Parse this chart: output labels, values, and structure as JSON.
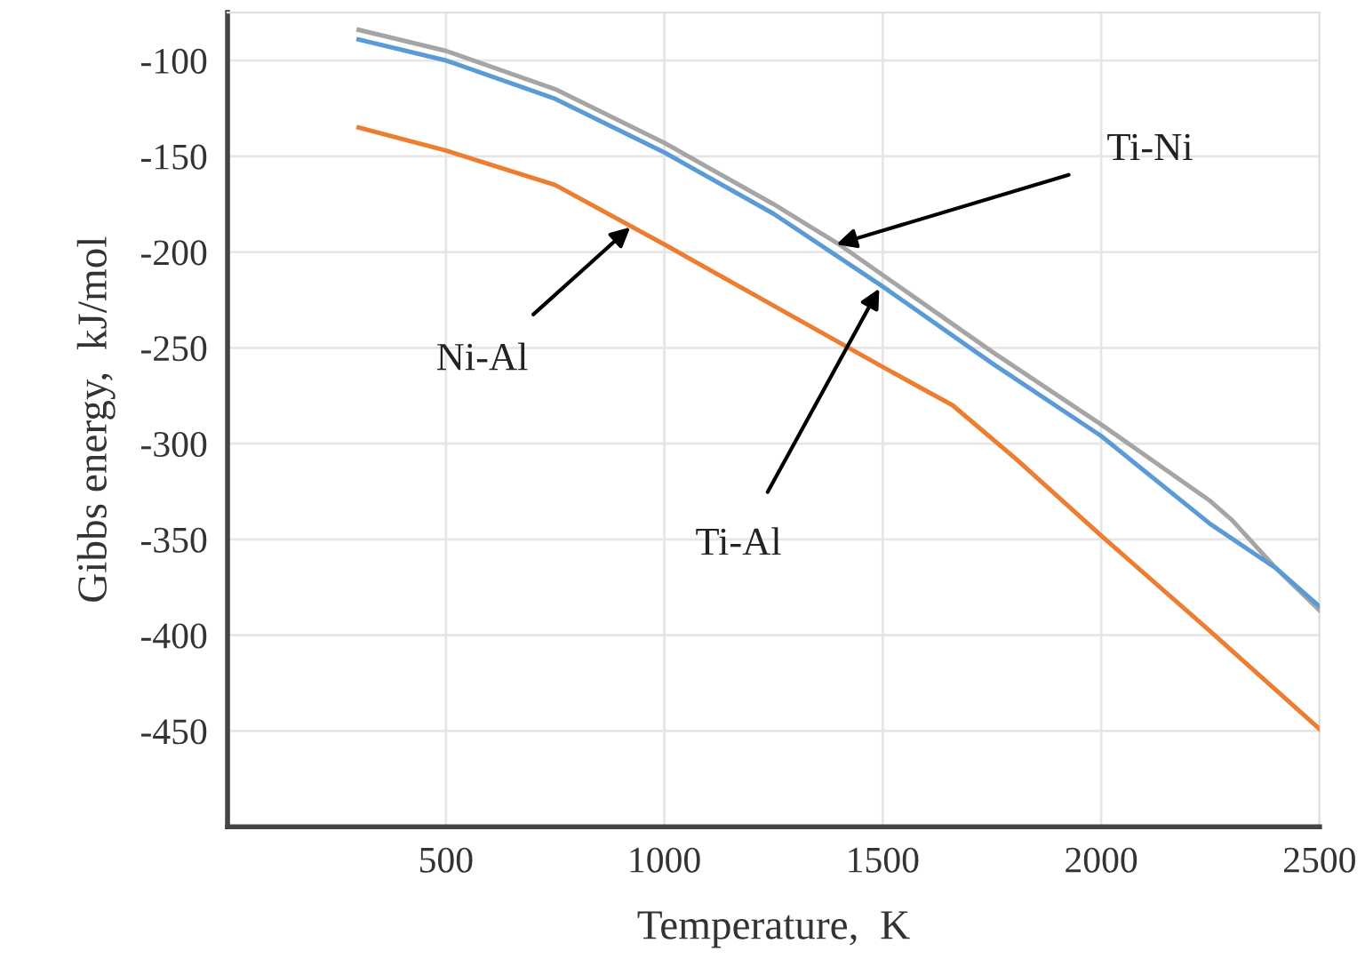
{
  "chart_data": {
    "type": "line",
    "xlabel": "Temperature,  K",
    "ylabel": "Gibbs energy,  kJ/mol",
    "xlim": [
      0,
      2500
    ],
    "xticks": [
      500,
      1000,
      1500,
      2000,
      2500
    ],
    "ylim": [
      -500,
      -75
    ],
    "yticks": [
      -100,
      -150,
      -200,
      -250,
      -300,
      -350,
      -400,
      -450
    ],
    "grid": true,
    "marker": "none",
    "line_style": "solid",
    "series": [
      {
        "color": "#a5a5a5",
        "x": [
          300,
          500,
          750,
          1000,
          1250,
          1400,
          1500,
          1750,
          2000,
          2250,
          2300,
          2400,
          2500
        ],
        "values": [
          -84,
          -95,
          -115,
          -143,
          -175,
          -196,
          -212,
          -252,
          -290,
          -330,
          -340,
          -365,
          -387
        ]
      },
      {
        "color": "#5b9bd5",
        "x": [
          300,
          500,
          750,
          1000,
          1250,
          1500,
          1750,
          2000,
          2250,
          2400,
          2500
        ],
        "values": [
          -89,
          -100,
          -120,
          -148,
          -180,
          -218,
          -258,
          -296,
          -342,
          -365,
          -385
        ]
      },
      {
        "color": "#ed7d31",
        "x": [
          300,
          500,
          750,
          1000,
          1250,
          1500,
          1660,
          1800,
          2000,
          2250,
          2500
        ],
        "values": [
          -135,
          -147,
          -165,
          -196,
          -228,
          -260,
          -280,
          -307,
          -348,
          -398,
          -449
        ]
      }
    ],
    "annotations": [
      {
        "text": "Ti-Ni",
        "x": 1394,
        "y": -196
      },
      {
        "text": "Ni-Al",
        "x": 922,
        "y": -187
      },
      {
        "text": "Ti-Al",
        "x": 1492,
        "y": -219
      }
    ]
  }
}
